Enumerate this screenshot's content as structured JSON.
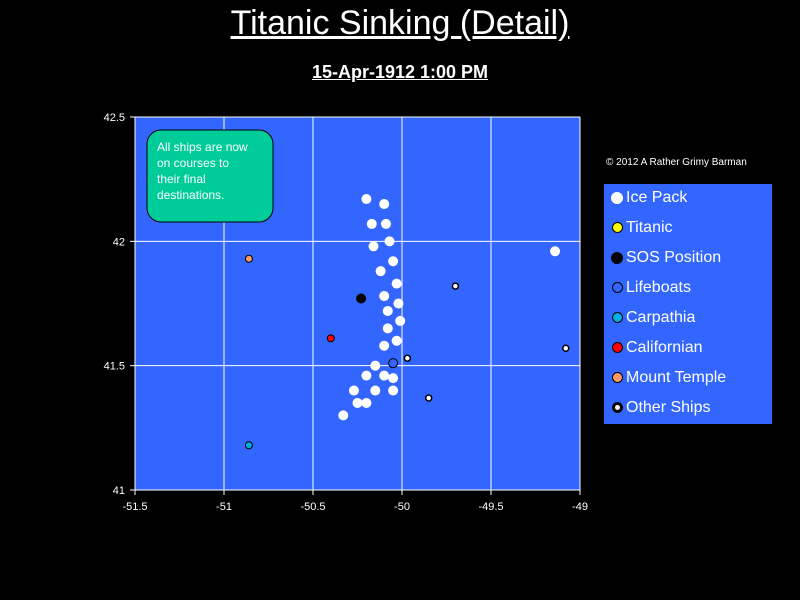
{
  "header": {
    "title": "Titanic Sinking (Detail)",
    "subtitle": "15-Apr-1912  1:00 PM"
  },
  "copyright": "© 2012  A Rather Grimy Barman",
  "colors": {
    "background": "#000000",
    "plot_area": "#3366ff",
    "grid": "#ffffff",
    "note_box": "#00cc99"
  },
  "chart_data": {
    "type": "scatter",
    "title": "Titanic Sinking (Detail)",
    "subtitle": "15-Apr-1912  1:00 PM",
    "xlim": [
      -51.5,
      -49
    ],
    "ylim": [
      41,
      42.5
    ],
    "x_ticks": [
      -51.5,
      -51,
      -50.5,
      -50,
      -49.5,
      -49
    ],
    "y_ticks": [
      41,
      41.5,
      42,
      42.5
    ],
    "x_tick_labels": [
      "-51.5",
      "-51",
      "-50.5",
      "-50",
      "-49.5",
      "-49"
    ],
    "y_tick_labels": [
      "41",
      "41.5",
      "42",
      "42.5"
    ],
    "grid": true,
    "legend_position": "right",
    "annotation": "All ships are now on courses to their final destinations.",
    "series": [
      {
        "name": "Ice Pack",
        "color": "#ffffff",
        "points": [
          [
            -50.2,
            42.17
          ],
          [
            -50.1,
            42.15
          ],
          [
            -50.17,
            42.07
          ],
          [
            -50.09,
            42.07
          ],
          [
            -50.16,
            41.98
          ],
          [
            -50.07,
            42.0
          ],
          [
            -50.05,
            41.92
          ],
          [
            -50.12,
            41.88
          ],
          [
            -50.03,
            41.83
          ],
          [
            -50.02,
            41.75
          ],
          [
            -50.1,
            41.78
          ],
          [
            -50.08,
            41.72
          ],
          [
            -50.01,
            41.68
          ],
          [
            -50.08,
            41.65
          ],
          [
            -50.03,
            41.6
          ],
          [
            -50.1,
            41.58
          ],
          [
            -50.15,
            41.5
          ],
          [
            -50.2,
            41.46
          ],
          [
            -50.1,
            41.46
          ],
          [
            -50.05,
            41.45
          ],
          [
            -50.15,
            41.4
          ],
          [
            -50.27,
            41.4
          ],
          [
            -50.05,
            41.4
          ],
          [
            -50.25,
            41.35
          ],
          [
            -50.2,
            41.35
          ],
          [
            -50.33,
            41.3
          ],
          [
            -49.14,
            41.96
          ]
        ]
      },
      {
        "name": "Titanic",
        "color": "#ffff00",
        "points": []
      },
      {
        "name": "SOS Position",
        "color": "#000000",
        "points": [
          [
            -50.23,
            41.77
          ]
        ]
      },
      {
        "name": "Lifeboats",
        "color": "#3366ff",
        "points": [
          [
            -50.05,
            41.51
          ]
        ]
      },
      {
        "name": "Carpathia",
        "color": "#00b0e0",
        "points": [
          [
            -50.86,
            41.18
          ]
        ]
      },
      {
        "name": "Californian",
        "color": "#ff0000",
        "points": [
          [
            -50.4,
            41.61
          ]
        ]
      },
      {
        "name": "Mount Temple",
        "color": "#ff9966",
        "points": [
          [
            -50.86,
            41.93
          ]
        ]
      },
      {
        "name": "Other Ships",
        "color": "#ffffff",
        "points": [
          [
            -49.7,
            41.82
          ],
          [
            -49.97,
            41.53
          ],
          [
            -49.85,
            41.37
          ],
          [
            -49.08,
            41.57
          ]
        ]
      }
    ]
  }
}
